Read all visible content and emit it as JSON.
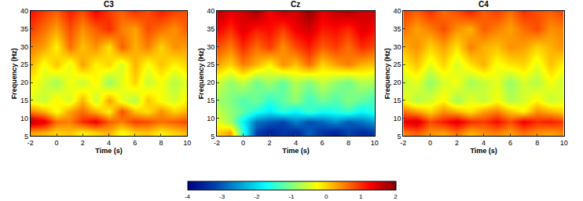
{
  "chart_data": {
    "type": "heatmap",
    "xlabel": "Time (s)",
    "ylabel": "Frequency (Hz)",
    "xlim": [
      -2,
      10
    ],
    "ylim": [
      5,
      40
    ],
    "xticks": [
      -2,
      0,
      2,
      4,
      6,
      8,
      10
    ],
    "yticks": [
      5,
      10,
      15,
      20,
      25,
      30,
      35,
      40
    ],
    "x": [
      -2,
      -1,
      0,
      1,
      2,
      3,
      4,
      5,
      6,
      7,
      8,
      9,
      10
    ],
    "y": [
      6,
      9,
      12,
      15,
      20,
      25,
      30,
      35,
      40
    ],
    "colorbar": {
      "range": [
        -4,
        2
      ],
      "ticks": [
        -4,
        -3,
        -2,
        -1,
        0,
        1,
        2
      ]
    },
    "panels": [
      {
        "title": "C3",
        "z": [
          [
            0.3,
            0.2,
            0.0,
            0.1,
            -0.2,
            0.0,
            0.2,
            -0.3,
            0.0,
            0.1,
            -0.2,
            0.0,
            0.2
          ],
          [
            1.6,
            1.4,
            0.6,
            0.5,
            1.0,
            1.3,
            0.7,
            0.5,
            0.9,
            0.8,
            0.6,
            0.7,
            0.8
          ],
          [
            0.5,
            0.2,
            -0.3,
            0.3,
            0.6,
            0.2,
            -0.2,
            0.8,
            0.1,
            -0.1,
            0.4,
            0.0,
            0.2
          ],
          [
            -0.4,
            -0.6,
            -0.2,
            -0.5,
            0.2,
            -0.6,
            0.3,
            -0.4,
            -0.7,
            0.1,
            -0.3,
            -0.5,
            -0.2
          ],
          [
            -0.2,
            -0.5,
            -0.8,
            -0.3,
            -0.6,
            -0.2,
            -0.9,
            -0.4,
            0.0,
            -0.6,
            -0.3,
            -0.7,
            -0.4
          ],
          [
            0.2,
            -0.3,
            0.1,
            -0.4,
            0.3,
            -0.2,
            0.0,
            -0.5,
            0.2,
            -0.3,
            0.1,
            -0.2,
            0.0
          ],
          [
            0.5,
            0.3,
            -0.2,
            0.6,
            0.1,
            0.4,
            -0.1,
            0.7,
            0.2,
            0.5,
            0.0,
            0.4,
            0.3
          ],
          [
            0.9,
            0.6,
            0.3,
            0.8,
            0.4,
            0.7,
            1.0,
            0.5,
            0.3,
            0.8,
            0.6,
            0.4,
            0.7
          ],
          [
            1.2,
            0.9,
            0.7,
            1.1,
            0.8,
            1.3,
            0.9,
            0.7,
            1.0,
            0.8,
            1.1,
            0.9,
            0.8
          ]
        ]
      },
      {
        "title": "Cz",
        "z": [
          [
            0.0,
            0.3,
            -1.5,
            -3.2,
            -3.6,
            -3.3,
            -3.5,
            -3.0,
            -3.4,
            -3.6,
            -3.2,
            -3.5,
            -3.3
          ],
          [
            -0.4,
            -0.8,
            -1.8,
            -2.8,
            -3.0,
            -3.2,
            -2.7,
            -3.1,
            -2.9,
            -2.6,
            -3.0,
            -2.8,
            -2.5
          ],
          [
            -0.6,
            -0.9,
            -1.2,
            -1.6,
            -1.9,
            -1.5,
            -1.8,
            -1.4,
            -1.7,
            -1.6,
            -1.4,
            -1.8,
            -1.5
          ],
          [
            -0.8,
            -1.0,
            -1.3,
            -1.1,
            -1.5,
            -1.2,
            -0.9,
            -1.4,
            -1.1,
            -1.3,
            -1.0,
            -1.2,
            -1.4
          ],
          [
            -0.5,
            -0.9,
            -0.6,
            -1.1,
            -0.8,
            -1.2,
            -0.7,
            -1.0,
            -0.6,
            -0.9,
            -1.1,
            -0.7,
            -0.8
          ],
          [
            0.3,
            0.0,
            0.5,
            0.2,
            -0.2,
            0.4,
            0.1,
            0.6,
            0.0,
            0.3,
            0.5,
            0.2,
            0.1
          ],
          [
            0.8,
            0.5,
            1.0,
            0.6,
            0.9,
            0.4,
            0.8,
            1.1,
            0.7,
            0.9,
            0.6,
            1.0,
            0.8
          ],
          [
            1.3,
            1.0,
            1.4,
            1.1,
            1.2,
            0.9,
            1.3,
            1.5,
            1.1,
            1.2,
            1.0,
            1.4,
            1.2
          ],
          [
            1.7,
            1.4,
            1.5,
            1.8,
            1.3,
            1.6,
            1.5,
            1.9,
            1.4,
            1.6,
            1.7,
            1.5,
            1.6
          ]
        ]
      },
      {
        "title": "C4",
        "z": [
          [
            0.5,
            0.7,
            0.4,
            0.3,
            0.6,
            0.2,
            0.4,
            0.5,
            0.3,
            0.6,
            0.4,
            0.3,
            0.5
          ],
          [
            1.3,
            1.5,
            0.8,
            1.1,
            1.4,
            1.0,
            0.9,
            1.2,
            0.8,
            1.3,
            1.0,
            1.1,
            0.9
          ],
          [
            0.6,
            0.3,
            0.0,
            0.4,
            0.2,
            -0.1,
            0.3,
            0.5,
            0.1,
            -0.2,
            0.4,
            0.2,
            0.0
          ],
          [
            -0.3,
            -0.7,
            -0.5,
            -0.2,
            -0.8,
            -0.4,
            -0.6,
            -0.3,
            -0.7,
            -0.5,
            -0.2,
            -0.6,
            -0.4
          ],
          [
            -0.6,
            -0.4,
            -0.9,
            -0.5,
            -0.3,
            -0.8,
            -0.6,
            -0.4,
            -0.9,
            -0.5,
            -0.7,
            -0.3,
            -0.6
          ],
          [
            -0.2,
            0.1,
            -0.4,
            0.0,
            -0.5,
            -0.1,
            0.2,
            -0.3,
            -0.1,
            0.0,
            -0.4,
            0.1,
            -0.2
          ],
          [
            0.2,
            0.4,
            0.0,
            0.3,
            -0.1,
            0.5,
            0.2,
            0.1,
            0.4,
            0.3,
            0.0,
            0.2,
            0.4
          ],
          [
            0.6,
            0.3,
            0.5,
            0.8,
            0.4,
            0.2,
            0.7,
            0.5,
            0.3,
            0.6,
            0.8,
            0.4,
            0.5
          ],
          [
            0.9,
            0.7,
            1.0,
            0.6,
            0.8,
            1.1,
            0.7,
            0.9,
            0.6,
            1.0,
            0.8,
            0.7,
            0.9
          ]
        ]
      }
    ]
  }
}
